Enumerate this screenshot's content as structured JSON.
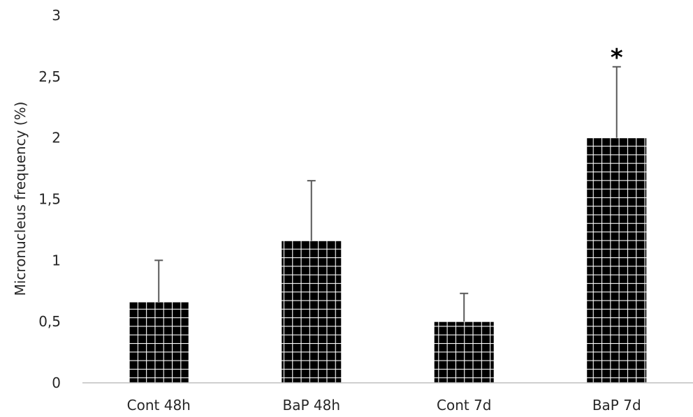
{
  "chart_data": {
    "type": "bar",
    "title": "",
    "xlabel": "",
    "ylabel": "Micronucleus frequency (%)",
    "categories": [
      "Cont 48h",
      "BaP 48h",
      "Cont 7d",
      "BaP 7d"
    ],
    "values": [
      0.66,
      1.16,
      0.5,
      2.0
    ],
    "error_upper": [
      1.0,
      1.65,
      0.73,
      2.58
    ],
    "annotations": [
      "",
      "",
      "",
      "*"
    ],
    "ylim": [
      0,
      3
    ],
    "yticks": [
      0,
      0.5,
      1,
      1.5,
      2,
      2.5,
      3
    ],
    "ytick_labels": [
      "0",
      "0,5",
      "1",
      "1,5",
      "2",
      "2,5",
      "3"
    ],
    "grid": false,
    "bar_fill": "#000000",
    "bar_pattern_line": "#ffffff",
    "error_bar_color": "#595959",
    "axis_color": "#bfbfbf"
  }
}
